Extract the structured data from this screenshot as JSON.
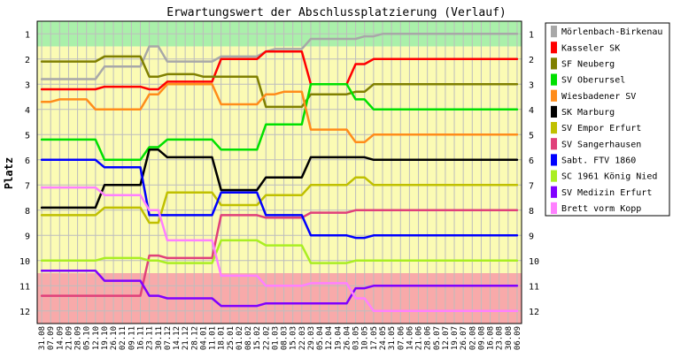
{
  "chart_data": {
    "type": "line",
    "title": "Erwartungswert der Abschlussplatzierung (Verlauf)",
    "xlabel": "",
    "ylabel": "Platz",
    "y_reversed": true,
    "ylim": [
      0.5,
      12.5
    ],
    "y_ticks": [
      "1",
      "2",
      "3",
      "4",
      "5",
      "6",
      "7",
      "8",
      "9",
      "10",
      "11",
      "12"
    ],
    "grid": "vertical and horizontal, grey",
    "legend_position": "right",
    "bands": [
      {
        "from": 0.5,
        "to": 1.5,
        "color": "#aaf0aa"
      },
      {
        "from": 1.5,
        "to": 10.5,
        "color": "#fbfbb4"
      },
      {
        "from": 10.5,
        "to": 12.5,
        "color": "#f8aaaa"
      }
    ],
    "x": [
      "31.08",
      "07.09",
      "14.09",
      "21.09",
      "28.09",
      "05.10",
      "12.10",
      "19.10",
      "26.10",
      "02.11",
      "09.11",
      "16.11",
      "23.11",
      "30.11",
      "07.12",
      "14.12",
      "21.12",
      "28.12",
      "04.01",
      "11.01",
      "18.01",
      "25.01",
      "01.02",
      "08.02",
      "15.02",
      "22.02",
      "01.03",
      "08.03",
      "15.03",
      "22.03",
      "29.03",
      "05.04",
      "12.04",
      "19.04",
      "26.04",
      "03.05",
      "10.05",
      "17.05",
      "24.05",
      "31.05",
      "07.06",
      "14.06",
      "21.06",
      "28.06",
      "05.07",
      "12.07",
      "19.07",
      "26.07",
      "02.08",
      "09.08",
      "16.08",
      "23.08",
      "30.08",
      "06.09"
    ],
    "series": [
      {
        "name": "Mörlenbach-Birkenau",
        "color": "#a8a8a8",
        "values": [
          2.8,
          2.8,
          2.8,
          2.8,
          2.8,
          2.8,
          2.8,
          2.3,
          2.3,
          2.3,
          2.3,
          2.3,
          1.5,
          1.5,
          2.1,
          2.1,
          2.1,
          2.1,
          2.1,
          2.1,
          1.9,
          1.9,
          1.9,
          1.9,
          1.9,
          1.7,
          1.6,
          1.6,
          1.6,
          1.6,
          1.2,
          1.2,
          1.2,
          1.2,
          1.2,
          1.2,
          1.1,
          1.1,
          1,
          1,
          1,
          1,
          1,
          1,
          1,
          1,
          1,
          1,
          1,
          1,
          1,
          1,
          1,
          1
        ]
      },
      {
        "name": "Kasseler SK",
        "color": "#ff0000",
        "values": [
          3.2,
          3.2,
          3.2,
          3.2,
          3.2,
          3.2,
          3.2,
          3.1,
          3.1,
          3.1,
          3.1,
          3.1,
          3.2,
          3.2,
          2.9,
          2.9,
          2.9,
          2.9,
          2.9,
          2.9,
          2.0,
          2.0,
          2.0,
          2.0,
          2.0,
          1.7,
          1.7,
          1.7,
          1.7,
          1.7,
          3.0,
          3.0,
          3.0,
          3.0,
          3.0,
          2.2,
          2.2,
          2.0,
          2.0,
          2.0,
          2.0,
          2.0,
          2.0,
          2.0,
          2.0,
          2.0,
          2.0,
          2.0,
          2.0,
          2.0,
          2.0,
          2.0,
          2.0,
          2.0
        ]
      },
      {
        "name": "SF Neuberg",
        "color": "#808000",
        "values": [
          2.1,
          2.1,
          2.1,
          2.1,
          2.1,
          2.1,
          2.1,
          1.9,
          1.9,
          1.9,
          1.9,
          1.9,
          2.7,
          2.7,
          2.6,
          2.6,
          2.6,
          2.6,
          2.7,
          2.7,
          2.7,
          2.7,
          2.7,
          2.7,
          2.7,
          3.9,
          3.9,
          3.9,
          3.9,
          3.9,
          3.4,
          3.4,
          3.4,
          3.4,
          3.4,
          3.3,
          3.3,
          3.0,
          3.0,
          3.0,
          3.0,
          3.0,
          3.0,
          3.0,
          3.0,
          3.0,
          3.0,
          3.0,
          3.0,
          3.0,
          3.0,
          3.0,
          3.0,
          3.0
        ]
      },
      {
        "name": "SV Oberursel",
        "color": "#00e000",
        "values": [
          5.2,
          5.2,
          5.2,
          5.2,
          5.2,
          5.2,
          5.2,
          6.0,
          6.0,
          6.0,
          6.0,
          6.0,
          5.5,
          5.5,
          5.2,
          5.2,
          5.2,
          5.2,
          5.2,
          5.2,
          5.6,
          5.6,
          5.6,
          5.6,
          5.6,
          4.6,
          4.6,
          4.6,
          4.6,
          4.6,
          3.0,
          3.0,
          3.0,
          3.0,
          3.0,
          3.6,
          3.6,
          4.0,
          4.0,
          4.0,
          4.0,
          4.0,
          4.0,
          4.0,
          4.0,
          4.0,
          4.0,
          4.0,
          4.0,
          4.0,
          4.0,
          4.0,
          4.0,
          4.0
        ]
      },
      {
        "name": "Wiesbadener SV",
        "color": "#ff8c1a",
        "values": [
          3.7,
          3.7,
          3.6,
          3.6,
          3.6,
          3.6,
          4.0,
          4.0,
          4.0,
          4.0,
          4.0,
          4.0,
          3.4,
          3.4,
          3.0,
          3.0,
          3.0,
          3.0,
          3.0,
          3.0,
          3.8,
          3.8,
          3.8,
          3.8,
          3.8,
          3.4,
          3.4,
          3.3,
          3.3,
          3.3,
          4.8,
          4.8,
          4.8,
          4.8,
          4.8,
          5.3,
          5.3,
          5.0,
          5.0,
          5.0,
          5.0,
          5.0,
          5.0,
          5.0,
          5.0,
          5.0,
          5.0,
          5.0,
          5.0,
          5.0,
          5.0,
          5.0,
          5.0,
          5.0
        ]
      },
      {
        "name": "SK Marburg",
        "color": "#000000",
        "values": [
          7.9,
          7.9,
          7.9,
          7.9,
          7.9,
          7.9,
          7.9,
          7.0,
          7.0,
          7.0,
          7.0,
          7.0,
          5.6,
          5.6,
          5.9,
          5.9,
          5.9,
          5.9,
          5.9,
          5.9,
          7.2,
          7.2,
          7.2,
          7.2,
          7.2,
          6.7,
          6.7,
          6.7,
          6.7,
          6.7,
          5.9,
          5.9,
          5.9,
          5.9,
          5.9,
          5.9,
          5.9,
          6.0,
          6.0,
          6.0,
          6.0,
          6.0,
          6.0,
          6.0,
          6.0,
          6.0,
          6.0,
          6.0,
          6.0,
          6.0,
          6.0,
          6.0,
          6.0,
          6.0
        ]
      },
      {
        "name": "SV Empor Erfurt",
        "color": "#c0c000",
        "values": [
          8.2,
          8.2,
          8.2,
          8.2,
          8.2,
          8.2,
          8.2,
          7.9,
          7.9,
          7.9,
          7.9,
          7.9,
          8.5,
          8.5,
          7.3,
          7.3,
          7.3,
          7.3,
          7.3,
          7.3,
          7.8,
          7.8,
          7.8,
          7.8,
          7.8,
          7.4,
          7.4,
          7.4,
          7.4,
          7.4,
          7.0,
          7.0,
          7.0,
          7.0,
          7.0,
          6.7,
          6.7,
          7.0,
          7.0,
          7.0,
          7.0,
          7.0,
          7.0,
          7.0,
          7.0,
          7.0,
          7.0,
          7.0,
          7.0,
          7.0,
          7.0,
          7.0,
          7.0,
          7.0
        ]
      },
      {
        "name": "SV Sangerhausen",
        "color": "#e0407a",
        "values": [
          11.4,
          11.4,
          11.4,
          11.4,
          11.4,
          11.4,
          11.4,
          11.4,
          11.4,
          11.4,
          11.4,
          11.4,
          9.8,
          9.8,
          9.9,
          9.9,
          9.9,
          9.9,
          9.9,
          9.9,
          8.2,
          8.2,
          8.2,
          8.2,
          8.2,
          8.3,
          8.3,
          8.3,
          8.3,
          8.3,
          8.1,
          8.1,
          8.1,
          8.1,
          8.1,
          8.0,
          8.0,
          8.0,
          8.0,
          8.0,
          8.0,
          8.0,
          8.0,
          8.0,
          8.0,
          8.0,
          8.0,
          8.0,
          8.0,
          8.0,
          8.0,
          8.0,
          8.0,
          8.0
        ]
      },
      {
        "name": "Sabt. FTV 1860",
        "color": "#0000ff",
        "values": [
          6.0,
          6.0,
          6.0,
          6.0,
          6.0,
          6.0,
          6.0,
          6.3,
          6.3,
          6.3,
          6.3,
          6.3,
          8.2,
          8.2,
          8.2,
          8.2,
          8.2,
          8.2,
          8.2,
          8.2,
          7.3,
          7.3,
          7.3,
          7.3,
          7.3,
          8.2,
          8.2,
          8.2,
          8.2,
          8.2,
          9.0,
          9.0,
          9.0,
          9.0,
          9.0,
          9.1,
          9.1,
          9.0,
          9.0,
          9.0,
          9.0,
          9.0,
          9.0,
          9.0,
          9.0,
          9.0,
          9.0,
          9.0,
          9.0,
          9.0,
          9.0,
          9.0,
          9.0,
          9.0
        ]
      },
      {
        "name": "SC 1961 König Nied",
        "color": "#aaee22",
        "values": [
          10.0,
          10.0,
          10.0,
          10.0,
          10.0,
          10.0,
          10.0,
          9.9,
          9.9,
          9.9,
          9.9,
          9.9,
          10.0,
          10.0,
          10.1,
          10.1,
          10.1,
          10.1,
          10.1,
          10.1,
          9.2,
          9.2,
          9.2,
          9.2,
          9.2,
          9.4,
          9.4,
          9.4,
          9.4,
          9.4,
          10.1,
          10.1,
          10.1,
          10.1,
          10.1,
          10.0,
          10.0,
          10.0,
          10.0,
          10.0,
          10.0,
          10.0,
          10.0,
          10.0,
          10.0,
          10.0,
          10.0,
          10.0,
          10.0,
          10.0,
          10.0,
          10.0,
          10.0,
          10.0
        ]
      },
      {
        "name": "SV Medizin Erfurt",
        "color": "#8000ff",
        "values": [
          10.4,
          10.4,
          10.4,
          10.4,
          10.4,
          10.4,
          10.4,
          10.8,
          10.8,
          10.8,
          10.8,
          10.8,
          11.4,
          11.4,
          11.5,
          11.5,
          11.5,
          11.5,
          11.5,
          11.5,
          11.8,
          11.8,
          11.8,
          11.8,
          11.8,
          11.7,
          11.7,
          11.7,
          11.7,
          11.7,
          11.7,
          11.7,
          11.7,
          11.7,
          11.7,
          11.1,
          11.1,
          11.0,
          11.0,
          11.0,
          11.0,
          11.0,
          11.0,
          11.0,
          11.0,
          11.0,
          11.0,
          11.0,
          11.0,
          11.0,
          11.0,
          11.0,
          11.0,
          11.0
        ]
      },
      {
        "name": "Brett vorm Kopp",
        "color": "#ff80ff",
        "values": [
          7.1,
          7.1,
          7.1,
          7.1,
          7.1,
          7.1,
          7.1,
          7.4,
          7.4,
          7.4,
          7.4,
          7.4,
          8.0,
          8.0,
          9.2,
          9.2,
          9.2,
          9.2,
          9.2,
          9.2,
          10.6,
          10.6,
          10.6,
          10.6,
          10.6,
          11.0,
          11.0,
          11.0,
          11.0,
          11.0,
          10.9,
          10.9,
          10.9,
          10.9,
          10.9,
          11.5,
          11.5,
          12.0,
          12.0,
          12.0,
          12.0,
          12.0,
          12.0,
          12.0,
          12.0,
          12.0,
          12.0,
          12.0,
          12.0,
          12.0,
          12.0,
          12.0,
          12.0,
          12.0
        ]
      }
    ]
  }
}
